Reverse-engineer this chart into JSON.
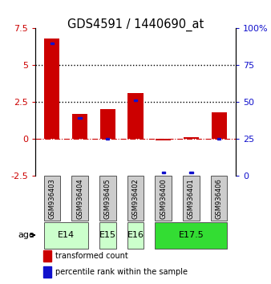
{
  "title": "GDS4591 / 1440690_at",
  "samples": [
    "GSM936403",
    "GSM936404",
    "GSM936405",
    "GSM936402",
    "GSM936400",
    "GSM936401",
    "GSM936406"
  ],
  "transformed_count": [
    6.8,
    1.7,
    2.0,
    3.1,
    -0.1,
    0.1,
    1.8
  ],
  "percentile_rank_left": [
    6.5,
    1.4,
    0.0,
    2.6,
    -2.3,
    -2.3,
    0.0
  ],
  "left_ylim": [
    -2.5,
    7.5
  ],
  "right_ylim": [
    0,
    100
  ],
  "left_yticks": [
    -2.5,
    0,
    2.5,
    5,
    7.5
  ],
  "right_yticks": [
    0,
    25,
    50,
    75,
    100
  ],
  "left_yticklabels": [
    "-2.5",
    "0",
    "2.5",
    "5",
    "7.5"
  ],
  "right_yticklabels": [
    "0",
    "25",
    "50",
    "75",
    "100%"
  ],
  "hlines_y": [
    2.5,
    5.0
  ],
  "bar_color_red": "#cc0000",
  "bar_color_blue": "#1111cc",
  "age_groups": [
    {
      "label": "E14",
      "start": 0,
      "end": 2,
      "color": "#ccffcc"
    },
    {
      "label": "E15",
      "start": 2,
      "end": 3,
      "color": "#ccffcc"
    },
    {
      "label": "E16",
      "start": 3,
      "end": 4,
      "color": "#ccffcc"
    },
    {
      "label": "E17.5",
      "start": 4,
      "end": 7,
      "color": "#33dd33"
    }
  ],
  "legend_entries": [
    {
      "label": "transformed count",
      "color": "#cc0000"
    },
    {
      "label": "percentile rank within the sample",
      "color": "#1111cc"
    }
  ],
  "age_label": "age",
  "bar_width": 0.55,
  "figsize": [
    3.38,
    3.54
  ],
  "dpi": 100
}
